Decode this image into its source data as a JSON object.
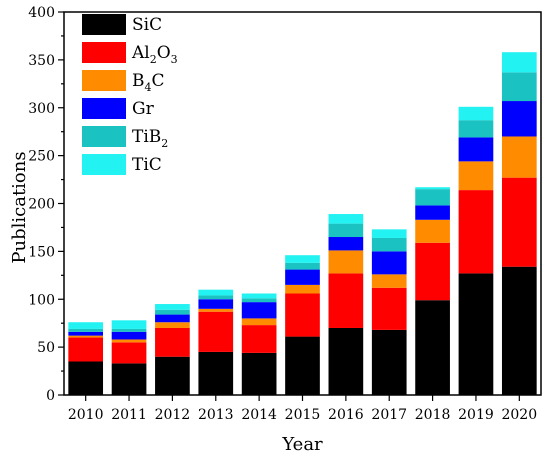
{
  "chart_data": {
    "type": "bar",
    "stacked": true,
    "xlabel": "Year",
    "ylabel": "Publications",
    "ylim": [
      0,
      400
    ],
    "yticks": [
      0,
      50,
      100,
      150,
      200,
      250,
      300,
      350,
      400
    ],
    "grid": false,
    "legend_position": "top-left",
    "categories": [
      "2010",
      "2011",
      "2012",
      "2013",
      "2014",
      "2015",
      "2016",
      "2017",
      "2018",
      "2019",
      "2020"
    ],
    "series": [
      {
        "name": "SiC",
        "name_parts": [
          [
            "SiC",
            false
          ]
        ],
        "color": "#000000",
        "values": [
          35,
          33,
          40,
          45,
          44,
          61,
          70,
          68,
          99,
          127,
          134
        ]
      },
      {
        "name": "Al2O3",
        "name_parts": [
          [
            "Al",
            false
          ],
          [
            "2",
            true
          ],
          [
            "O",
            false
          ],
          [
            "3",
            true
          ]
        ],
        "color": "#ff0000",
        "values": [
          25,
          22,
          30,
          42,
          29,
          45,
          57,
          44,
          60,
          87,
          93
        ]
      },
      {
        "name": "B4C",
        "name_parts": [
          [
            "B",
            false
          ],
          [
            "4",
            true
          ],
          [
            "C",
            false
          ]
        ],
        "color": "#ff8c00",
        "values": [
          2,
          3,
          6,
          3,
          7,
          9,
          24,
          14,
          24,
          30,
          43
        ]
      },
      {
        "name": "Gr",
        "name_parts": [
          [
            "Gr",
            false
          ]
        ],
        "color": "#0000ff",
        "values": [
          4,
          8,
          8,
          10,
          17,
          16,
          14,
          24,
          15,
          25,
          37
        ]
      },
      {
        "name": "TiB2",
        "name_parts": [
          [
            "TiB",
            false
          ],
          [
            "2",
            true
          ]
        ],
        "color": "#1ac2c2",
        "values": [
          3,
          3,
          5,
          4,
          4,
          7,
          14,
          14,
          17,
          18,
          30
        ]
      },
      {
        "name": "TiC",
        "name_parts": [
          [
            "TiC",
            false
          ]
        ],
        "color": "#22f2f2",
        "values": [
          7,
          9,
          6,
          6,
          5,
          8,
          10,
          9,
          2,
          14,
          21
        ]
      }
    ]
  }
}
